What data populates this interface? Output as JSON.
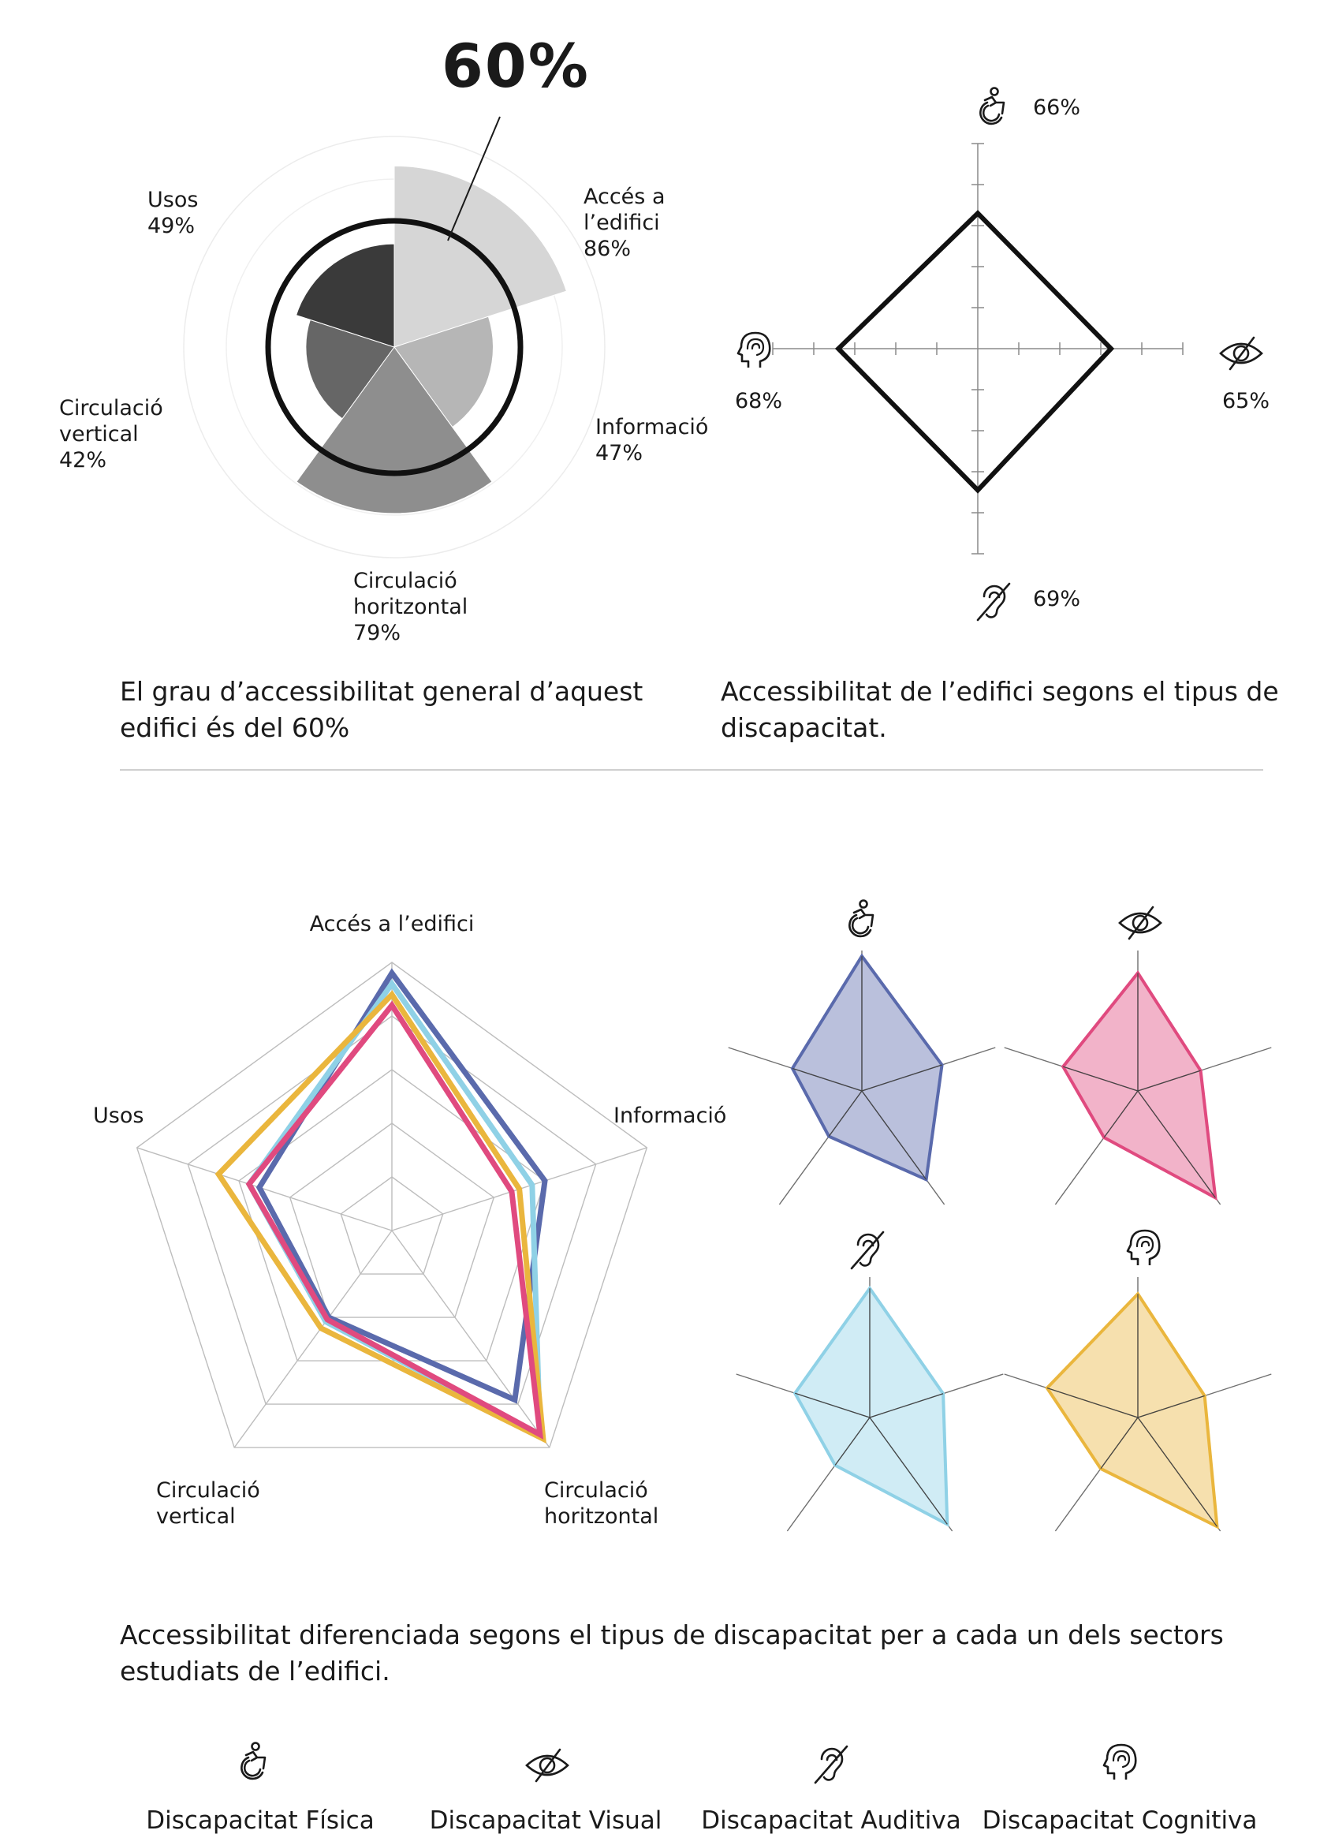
{
  "colors": {
    "fisica": "#5a6aac",
    "visual": "#e04a7f",
    "auditiva": "#8fd1e6",
    "cognitiva": "#eab63d"
  },
  "icons": {
    "fisica": "wheelchair-icon",
    "visual": "eye-slash-icon",
    "auditiva": "ear-slash-icon",
    "cognitiva": "head-brain-icon"
  },
  "chart_data": [
    {
      "type": "polar-area",
      "headline": "60%",
      "categories": [
        "Accés a l'edifici",
        "Informació",
        "Circulació horitzontal",
        "Circulació vertical",
        "Usos"
      ],
      "label_lines": [
        [
          "Accés a",
          "l’edifici",
          "86%"
        ],
        [
          "Informació",
          "47%"
        ],
        [
          "Circulació",
          "horitzontal",
          "79%"
        ],
        [
          "Circulació",
          "vertical",
          "42%"
        ],
        [
          "Usos",
          "49%"
        ]
      ],
      "values": [
        86,
        47,
        79,
        42,
        49
      ],
      "average": 60,
      "ylim": [
        0,
        100
      ]
    },
    {
      "type": "radar",
      "axes": [
        "Discapacitat Física",
        "Discapacitat Visual",
        "Discapacitat Auditiva",
        "Discapacitat Cognitiva"
      ],
      "labels": [
        "66%",
        "65%",
        "69%",
        "68%"
      ],
      "values": [
        66,
        65,
        69,
        68
      ],
      "ylim": [
        0,
        100
      ]
    },
    {
      "type": "radar",
      "axes": [
        "Accés a l’edifici",
        "Informació",
        "Circulació horitzontal",
        "Circulació vertical",
        "Usos"
      ],
      "axis_label_lines": [
        [
          "Accés a l’edifici"
        ],
        [
          "Informació"
        ],
        [
          "Circulació",
          "horitzontal"
        ],
        [
          "Circulació",
          "vertical"
        ],
        [
          "Usos"
        ]
      ],
      "ylim": [
        0,
        100
      ],
      "series": [
        {
          "name": "Discapacitat Física",
          "values": [
            96,
            60,
            78,
            40,
            52
          ]
        },
        {
          "name": "Discapacitat Auditiva",
          "values": [
            92,
            55,
            94,
            42,
            56
          ]
        },
        {
          "name": "Discapacitat Cognitiva",
          "values": [
            88,
            50,
            96,
            45,
            68
          ]
        },
        {
          "name": "Discapacitat Visual",
          "values": [
            84,
            47,
            94,
            41,
            56
          ]
        }
      ]
    },
    {
      "type": "radar",
      "small_multiples": true,
      "axes": [
        "Accés a l’edifici",
        "Informació",
        "Circulació horitzontal",
        "Circulació vertical",
        "Usos"
      ],
      "ylim": [
        0,
        100
      ],
      "series": [
        {
          "name": "Discapacitat Física",
          "values": [
            96,
            60,
            78,
            40,
            52
          ]
        },
        {
          "name": "Discapacitat Visual",
          "values": [
            84,
            47,
            94,
            41,
            56
          ]
        },
        {
          "name": "Discapacitat Auditiva",
          "values": [
            92,
            55,
            94,
            42,
            56
          ]
        },
        {
          "name": "Discapacitat Cognitiva",
          "values": [
            88,
            50,
            96,
            45,
            68
          ]
        }
      ]
    }
  ],
  "captions": {
    "general": "El grau d’accessibilitat general d’aquest edifici és del 60%",
    "tipus": "Accessibilitat de l’edifici segons el tipus de discapacitat.",
    "sectors": "Accessibilitat diferenciada segons el tipus de discapacitat per a cada un dels sectors estudiats de l’edifici."
  },
  "legend": [
    {
      "key": "fisica",
      "label": "Discapacitat Física"
    },
    {
      "key": "visual",
      "label": "Discapacitat Visual"
    },
    {
      "key": "auditiva",
      "label": "Discapacitat Auditiva"
    },
    {
      "key": "cognitiva",
      "label": "Discapacitat Cognitiva"
    }
  ]
}
